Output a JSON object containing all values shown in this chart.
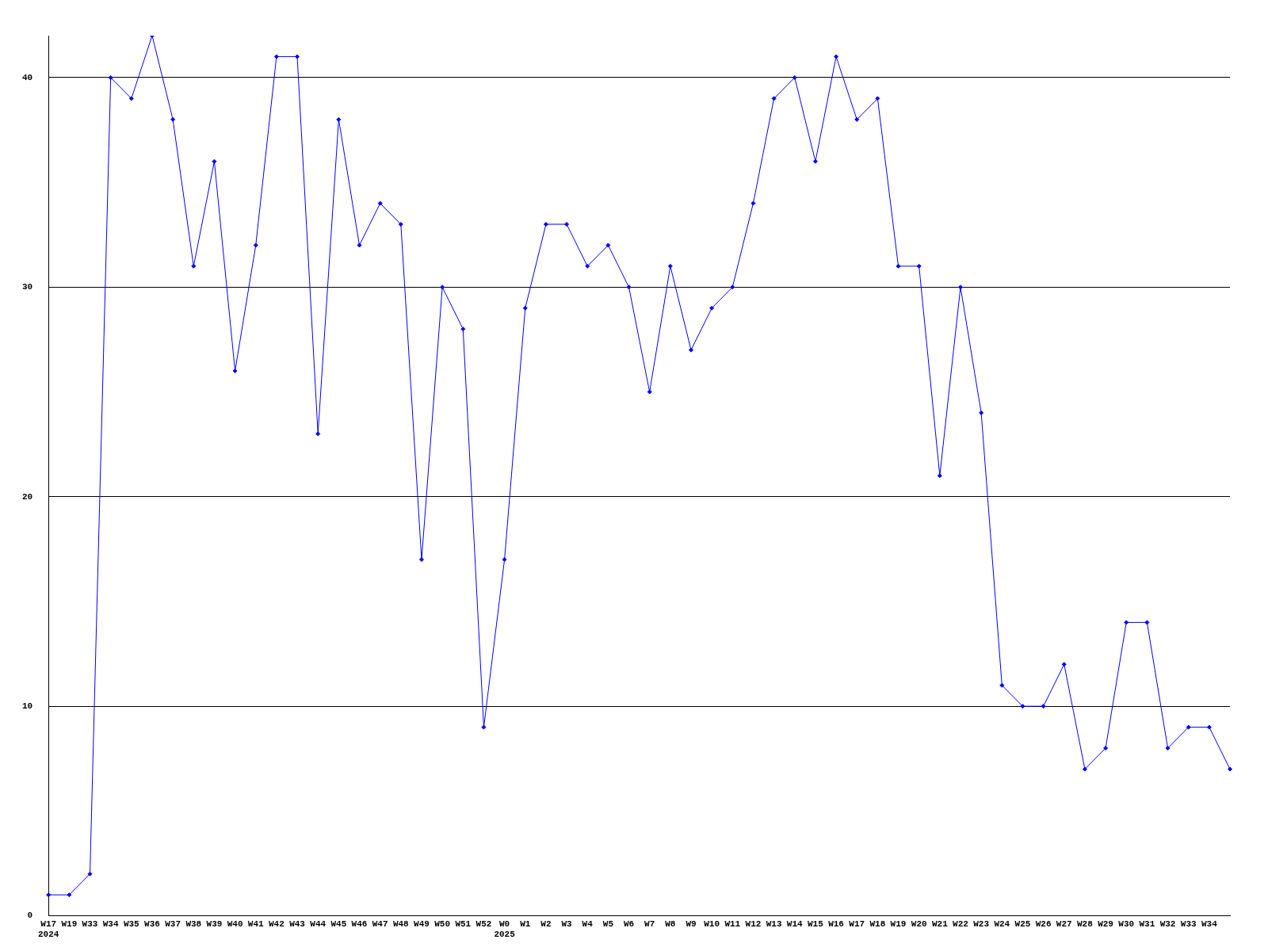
{
  "chart_data": {
    "type": "line",
    "categories": [
      "W17\n2024",
      "W19",
      "W33",
      "W34",
      "W35",
      "W36",
      "W37",
      "W38",
      "W39",
      "W40",
      "W41",
      "W42",
      "W43",
      "W44",
      "W45",
      "W46",
      "W47",
      "W48",
      "W49",
      "W50",
      "W51",
      "W52",
      "W0\n2025",
      "W1",
      "W2",
      "W3",
      "W4",
      "W5",
      "W6",
      "W7",
      "W8",
      "W9",
      "W10",
      "W11",
      "W12",
      "W13",
      "W14",
      "W15",
      "W16",
      "W17",
      "W18",
      "W19",
      "W20",
      "W21",
      "W22",
      "W23",
      "W24",
      "W25",
      "W26",
      "W27",
      "W28",
      "W29",
      "W30",
      "W31",
      "W32",
      "W33",
      "W34",
      null
    ],
    "series": [
      {
        "color": "#0000ff",
        "values": [
          1,
          1,
          2,
          40,
          39,
          42,
          38,
          31,
          36,
          26,
          32,
          41,
          41,
          23,
          38,
          32,
          34,
          33,
          17,
          30,
          28,
          9,
          17,
          29,
          33,
          33,
          31,
          32,
          30,
          25,
          31,
          27,
          29,
          30,
          34,
          39,
          40,
          36,
          41,
          38,
          39,
          31,
          31,
          21,
          30,
          24,
          11,
          10,
          10,
          12,
          7,
          8,
          14,
          14,
          8,
          9,
          9,
          7
        ]
      }
    ],
    "ylim": [
      0,
      42
    ],
    "yticks": [
      0,
      10,
      20,
      30,
      40
    ],
    "grid": "y",
    "legend": false,
    "marker": "diamond",
    "line_style": "solid"
  }
}
